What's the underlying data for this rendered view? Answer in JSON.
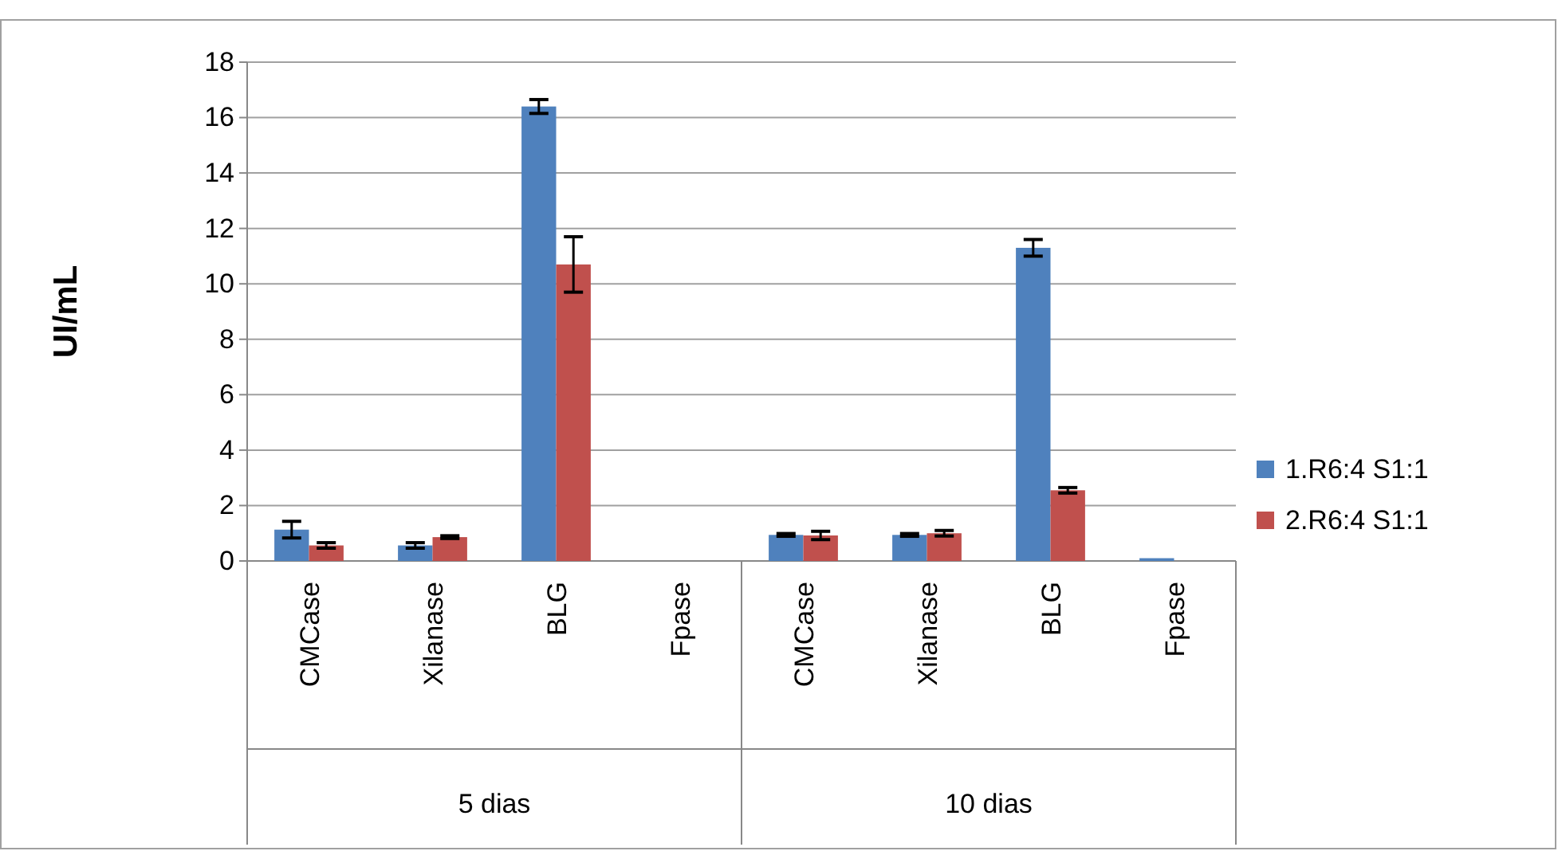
{
  "chart_data": {
    "type": "bar",
    "ylabel": "UI/mL",
    "categories": [
      "CMCase",
      "Xilanase",
      "BLG",
      "Fpase",
      "CMCase",
      "Xilanase",
      "BLG",
      "Fpase"
    ],
    "series": [
      {
        "name": "1.R6:4 S1:1",
        "color": "#4f81bd",
        "values": [
          1.13,
          0.56,
          16.4,
          0,
          0.94,
          0.94,
          11.3,
          0.1
        ],
        "errors": [
          0.3,
          0.1,
          0.25,
          null,
          0.05,
          0.05,
          0.3,
          null
        ]
      },
      {
        "name": "2.R6:4 S1:1",
        "color": "#c0504d",
        "values": [
          0.56,
          0.86,
          10.7,
          0,
          0.92,
          1.0,
          2.55,
          0
        ],
        "errors": [
          0.1,
          0.05,
          1.0,
          null,
          0.15,
          0.1,
          0.1,
          null
        ]
      }
    ],
    "ylim": [
      0,
      18
    ],
    "yticks": [
      0,
      2,
      4,
      6,
      8,
      10,
      12,
      14,
      16,
      18
    ],
    "grid": "y",
    "legend": "right",
    "annotations": [
      "5 dias",
      "10 dias"
    ]
  }
}
